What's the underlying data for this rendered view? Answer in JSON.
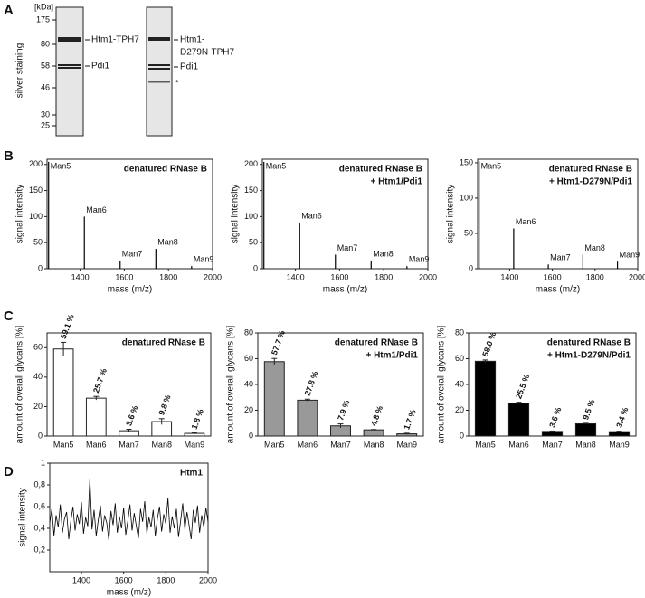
{
  "panel_labels": [
    "A",
    "B",
    "C",
    "D"
  ],
  "gel": {
    "y_label": "silver staining",
    "unit": "[kDa]",
    "markers": [
      175,
      80,
      58,
      46,
      30,
      25
    ],
    "lanes": [
      {
        "labels": [
          [
            "Htm1-TPH7"
          ],
          [
            "Pdi1"
          ]
        ]
      },
      {
        "labels": [
          [
            "Htm1-",
            "D279N-TPH7"
          ],
          [
            "Pdi1"
          ]
        ],
        "asterisk": "*"
      }
    ]
  },
  "chart_data": [
    {
      "type": "stem",
      "title": "denatured RNase B",
      "x_label": "mass (m/z)",
      "y_label": "signal intensity",
      "x": [
        1257,
        1419,
        1581,
        1743,
        1905
      ],
      "values": [
        205,
        100,
        15,
        38,
        5
      ],
      "peak_labels": [
        "Man5",
        "Man6",
        "Man7",
        "Man8",
        "Man9"
      ],
      "color": "#000000",
      "xlim": [
        1250,
        2000
      ],
      "ylim": [
        0,
        210
      ],
      "xticks": [
        1400,
        1600,
        1800,
        2000
      ],
      "yticks": [
        0,
        50,
        100,
        150,
        200
      ]
    },
    {
      "type": "stem",
      "title": "denatured RNase B",
      "subtitle": "+ Htm1/Pdi1",
      "x_label": "mass (m/z)",
      "y_label": "signal intensity",
      "x": [
        1257,
        1419,
        1581,
        1743,
        1905
      ],
      "values": [
        205,
        88,
        27,
        15,
        5
      ],
      "peak_labels": [
        "Man5",
        "Man6",
        "Man7",
        "Man8",
        "Man9"
      ],
      "color": "#000000",
      "xlim": [
        1250,
        2000
      ],
      "ylim": [
        0,
        210
      ],
      "xticks": [
        1400,
        1600,
        1800,
        2000
      ],
      "yticks": [
        0,
        50,
        100,
        150,
        200
      ]
    },
    {
      "type": "stem",
      "title": "denatured RNase B",
      "subtitle": "+ Htm1-D279N/Pdi1",
      "x_label": "mass (m/z)",
      "y_label": "signal intensity",
      "x": [
        1257,
        1419,
        1581,
        1743,
        1905
      ],
      "values": [
        152,
        57,
        6,
        20,
        10
      ],
      "peak_labels": [
        "Man5",
        "Man6",
        "Man7",
        "Man8",
        "Man9"
      ],
      "color": "#000000",
      "xlim": [
        1250,
        2000
      ],
      "ylim": [
        0,
        155
      ],
      "xticks": [
        1400,
        1600,
        1800,
        2000
      ],
      "yticks": [
        0,
        50,
        100,
        150
      ]
    },
    {
      "type": "bar",
      "title": "denatured RNase B",
      "y_label": "amount of overall  glycans [%]",
      "categories": [
        "Man5",
        "Man6",
        "Man7",
        "Man8",
        "Man9"
      ],
      "values": [
        59.1,
        25.7,
        3.6,
        9.8,
        1.8
      ],
      "errors": [
        4.5,
        1.2,
        1.0,
        2.0,
        0.5
      ],
      "value_labels": [
        "59.1 %",
        "25.7 %",
        "3.6 %",
        "9.8 %",
        "1.8 %"
      ],
      "color": "#ffffff",
      "ylim": [
        0,
        70
      ],
      "yticks": [
        0,
        20,
        40,
        60
      ]
    },
    {
      "type": "bar",
      "title": "denatured RNase B",
      "subtitle": "+ Htm1/Pdi1",
      "y_label": "amount of overall  glycans [%]",
      "categories": [
        "Man5",
        "Man6",
        "Man7",
        "Man8",
        "Man9"
      ],
      "values": [
        57.7,
        27.8,
        7.9,
        4.8,
        1.7
      ],
      "errors": [
        2.5,
        0.8,
        1.5,
        0.3,
        0.5
      ],
      "value_labels": [
        "57.7 %",
        "27.8 %",
        "7.9 %",
        "4.8 %",
        "1.7 %"
      ],
      "color": "#999999",
      "ylim": [
        0,
        80
      ],
      "yticks": [
        0,
        20,
        40,
        60,
        80
      ]
    },
    {
      "type": "bar",
      "title": "denatured RNase B",
      "subtitle": "+ Htm1-D279N/Pdi1",
      "y_label": "amount of overall  glycans [%]",
      "categories": [
        "Man5",
        "Man6",
        "Man7",
        "Man8",
        "Man9"
      ],
      "values": [
        58.0,
        25.5,
        3.6,
        9.5,
        3.4
      ],
      "errors": [
        1.0,
        0.7,
        0.3,
        0.4,
        0.4
      ],
      "value_labels": [
        "58.0 %",
        "25.5 %",
        "3.6 %",
        "9.5 %",
        "3.4 %"
      ],
      "color": "#000000",
      "ylim": [
        0,
        80
      ],
      "yticks": [
        0,
        20,
        40,
        60,
        80
      ]
    },
    {
      "type": "line",
      "title": "Htm1",
      "x_label": "mass (m/z)",
      "y_label": "signal intensity",
      "x": [
        1250,
        1260,
        1270,
        1280,
        1290,
        1300,
        1310,
        1320,
        1330,
        1340,
        1350,
        1360,
        1370,
        1380,
        1390,
        1400,
        1410,
        1420,
        1430,
        1440,
        1450,
        1460,
        1470,
        1480,
        1490,
        1500,
        1510,
        1520,
        1530,
        1540,
        1550,
        1560,
        1570,
        1580,
        1590,
        1600,
        1610,
        1620,
        1630,
        1640,
        1650,
        1660,
        1670,
        1680,
        1690,
        1700,
        1710,
        1720,
        1730,
        1740,
        1750,
        1760,
        1770,
        1780,
        1790,
        1800,
        1810,
        1820,
        1830,
        1840,
        1850,
        1860,
        1870,
        1880,
        1890,
        1900,
        1910,
        1920,
        1930,
        1940,
        1950,
        1960,
        1970,
        1980,
        1990,
        2000
      ],
      "values": [
        0.45,
        0.58,
        0.33,
        0.52,
        0.41,
        0.62,
        0.36,
        0.49,
        0.55,
        0.3,
        0.47,
        0.6,
        0.38,
        0.53,
        0.44,
        0.64,
        0.35,
        0.5,
        0.42,
        0.86,
        0.39,
        0.57,
        0.33,
        0.48,
        0.61,
        0.37,
        0.52,
        0.45,
        0.29,
        0.56,
        0.43,
        0.63,
        0.36,
        0.51,
        0.4,
        0.59,
        0.34,
        0.47,
        0.62,
        0.38,
        0.54,
        0.42,
        0.31,
        0.58,
        0.46,
        0.65,
        0.35,
        0.5,
        0.41,
        0.57,
        0.33,
        0.49,
        0.6,
        0.37,
        0.53,
        0.44,
        0.68,
        0.36,
        0.51,
        0.4,
        0.58,
        0.32,
        0.47,
        0.63,
        0.39,
        0.55,
        0.43,
        0.3,
        0.57,
        0.45,
        0.61,
        0.36,
        0.52,
        0.41,
        0.59,
        0.46
      ],
      "color": "#000000",
      "xlim": [
        1250,
        2000
      ],
      "ylim": [
        0,
        1
      ],
      "xticks": [
        1400,
        1600,
        1800,
        2000
      ],
      "yticks": [
        {
          "value": 0.2,
          "label": "0,2"
        },
        {
          "value": 0.4,
          "label": "0,4"
        },
        {
          "value": 0.6,
          "label": "0,6"
        },
        {
          "value": 0.8,
          "label": "0,8"
        },
        1
      ]
    }
  ]
}
